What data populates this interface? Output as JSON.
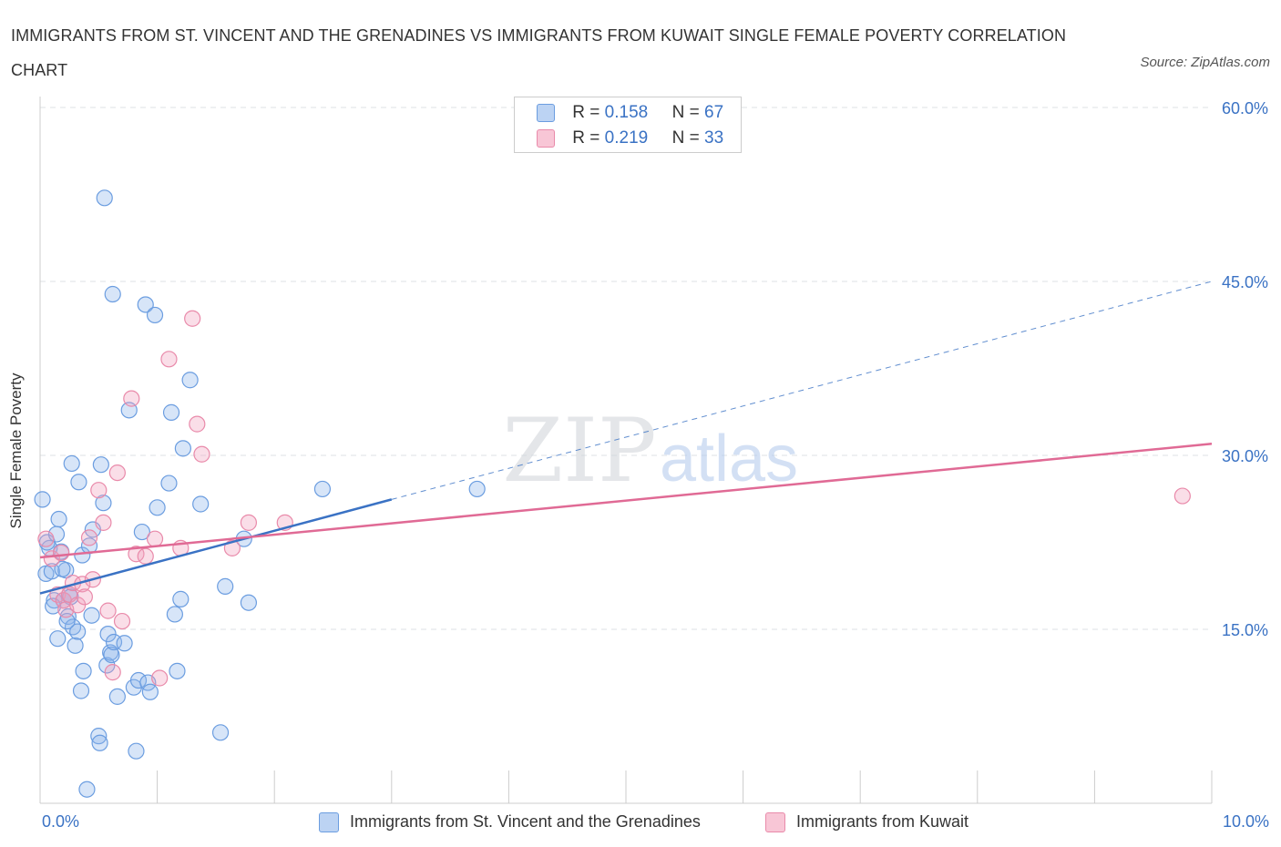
{
  "chart_data": {
    "type": "scatter",
    "title": "IMMIGRANTS FROM ST. VINCENT AND THE GRENADINES VS IMMIGRANTS FROM KUWAIT SINGLE FEMALE POVERTY CORRELATION CHART",
    "source": "Source: ZipAtlas.com",
    "ylabel": "Single Female Poverty",
    "xlim": [
      0,
      10
    ],
    "ylim": [
      0,
      60
    ],
    "y_ticks": [
      {
        "value": 60,
        "label": "60.0%"
      },
      {
        "value": 45,
        "label": "45.0%"
      },
      {
        "value": 30,
        "label": "30.0%"
      },
      {
        "value": 15,
        "label": "15.0%"
      }
    ],
    "x_tick_labels": {
      "min": "0.0%",
      "max": "10.0%"
    },
    "grid": true,
    "watermark": {
      "zip": "ZIP",
      "atlas": "atlas"
    },
    "legend": {
      "rows": [
        {
          "r_label": "R =",
          "r_value": "0.158",
          "n_label": "N =",
          "n_value": "67"
        },
        {
          "r_label": "R =",
          "r_value": "0.219",
          "n_label": "N =",
          "n_value": "33"
        }
      ]
    },
    "series": [
      {
        "name": "Immigrants from St. Vincent and the Grenadines",
        "color": "#6b9de0",
        "fill": "rgba(140,180,235,0.35)",
        "trend": {
          "x0": 0.0,
          "y0": 18.1,
          "x1": 3.0,
          "y1": 26.2,
          "dash_to_x": 10.0,
          "dash_to_y": 45.0,
          "line_color": "#3a72c4"
        },
        "points": [
          [
            0.02,
            26.2
          ],
          [
            0.05,
            19.8
          ],
          [
            0.08,
            22.0
          ],
          [
            0.1,
            20.0
          ],
          [
            0.12,
            17.5
          ],
          [
            0.15,
            14.2
          ],
          [
            0.16,
            24.5
          ],
          [
            0.18,
            21.7
          ],
          [
            0.2,
            17.5
          ],
          [
            0.22,
            20.1
          ],
          [
            0.24,
            16.1
          ],
          [
            0.25,
            18.0
          ],
          [
            0.27,
            29.3
          ],
          [
            0.28,
            15.2
          ],
          [
            0.3,
            13.6
          ],
          [
            0.32,
            14.8
          ],
          [
            0.33,
            27.7
          ],
          [
            0.35,
            9.7
          ],
          [
            0.36,
            21.4
          ],
          [
            0.37,
            11.4
          ],
          [
            0.4,
            1.2
          ],
          [
            0.42,
            22.2
          ],
          [
            0.44,
            16.2
          ],
          [
            0.45,
            23.6
          ],
          [
            0.5,
            5.8
          ],
          [
            0.51,
            5.2
          ],
          [
            0.52,
            29.2
          ],
          [
            0.54,
            25.9
          ],
          [
            0.55,
            52.2
          ],
          [
            0.57,
            11.9
          ],
          [
            0.58,
            14.6
          ],
          [
            0.6,
            13.0
          ],
          [
            0.61,
            12.8
          ],
          [
            0.62,
            43.9
          ],
          [
            0.63,
            13.9
          ],
          [
            0.66,
            9.2
          ],
          [
            0.72,
            13.8
          ],
          [
            0.76,
            33.9
          ],
          [
            0.8,
            10.0
          ],
          [
            0.82,
            4.5
          ],
          [
            0.84,
            10.6
          ],
          [
            0.87,
            23.4
          ],
          [
            0.9,
            43.0
          ],
          [
            0.92,
            10.4
          ],
          [
            0.94,
            9.6
          ],
          [
            0.98,
            42.1
          ],
          [
            1.0,
            25.5
          ],
          [
            1.1,
            27.6
          ],
          [
            1.12,
            33.7
          ],
          [
            1.15,
            16.3
          ],
          [
            1.17,
            11.4
          ],
          [
            1.2,
            17.6
          ],
          [
            1.22,
            30.6
          ],
          [
            1.28,
            36.5
          ],
          [
            1.37,
            25.8
          ],
          [
            1.58,
            18.7
          ],
          [
            1.54,
            6.1
          ],
          [
            1.78,
            17.3
          ],
          [
            1.74,
            22.8
          ],
          [
            2.41,
            27.1
          ],
          [
            3.73,
            27.1
          ],
          [
            0.06,
            22.5
          ],
          [
            0.11,
            17.0
          ],
          [
            0.14,
            23.2
          ],
          [
            0.19,
            20.2
          ],
          [
            0.23,
            15.7
          ],
          [
            0.26,
            17.8
          ]
        ]
      },
      {
        "name": "Immigrants from Kuwait",
        "color": "#e98aaa",
        "fill": "rgba(240,160,190,0.35)",
        "trend": {
          "x0": 0.0,
          "y0": 21.2,
          "x1": 10.0,
          "y1": 31.0,
          "line_color": "#e06a95"
        },
        "points": [
          [
            0.05,
            22.8
          ],
          [
            0.1,
            21.1
          ],
          [
            0.15,
            18.0
          ],
          [
            0.18,
            21.6
          ],
          [
            0.2,
            17.5
          ],
          [
            0.22,
            16.7
          ],
          [
            0.25,
            18.0
          ],
          [
            0.28,
            19.0
          ],
          [
            0.32,
            17.1
          ],
          [
            0.36,
            18.9
          ],
          [
            0.38,
            17.8
          ],
          [
            0.42,
            22.9
          ],
          [
            0.45,
            19.3
          ],
          [
            0.5,
            27.0
          ],
          [
            0.54,
            24.2
          ],
          [
            0.58,
            16.6
          ],
          [
            0.62,
            11.3
          ],
          [
            0.66,
            28.5
          ],
          [
            0.7,
            15.7
          ],
          [
            0.78,
            34.9
          ],
          [
            0.82,
            21.5
          ],
          [
            0.9,
            21.3
          ],
          [
            0.98,
            22.8
          ],
          [
            1.02,
            10.8
          ],
          [
            1.1,
            38.3
          ],
          [
            1.2,
            22.0
          ],
          [
            1.3,
            41.8
          ],
          [
            1.34,
            32.7
          ],
          [
            1.38,
            30.1
          ],
          [
            1.64,
            22.0
          ],
          [
            1.78,
            24.2
          ],
          [
            2.09,
            24.2
          ],
          [
            9.75,
            26.5
          ]
        ]
      }
    ]
  }
}
